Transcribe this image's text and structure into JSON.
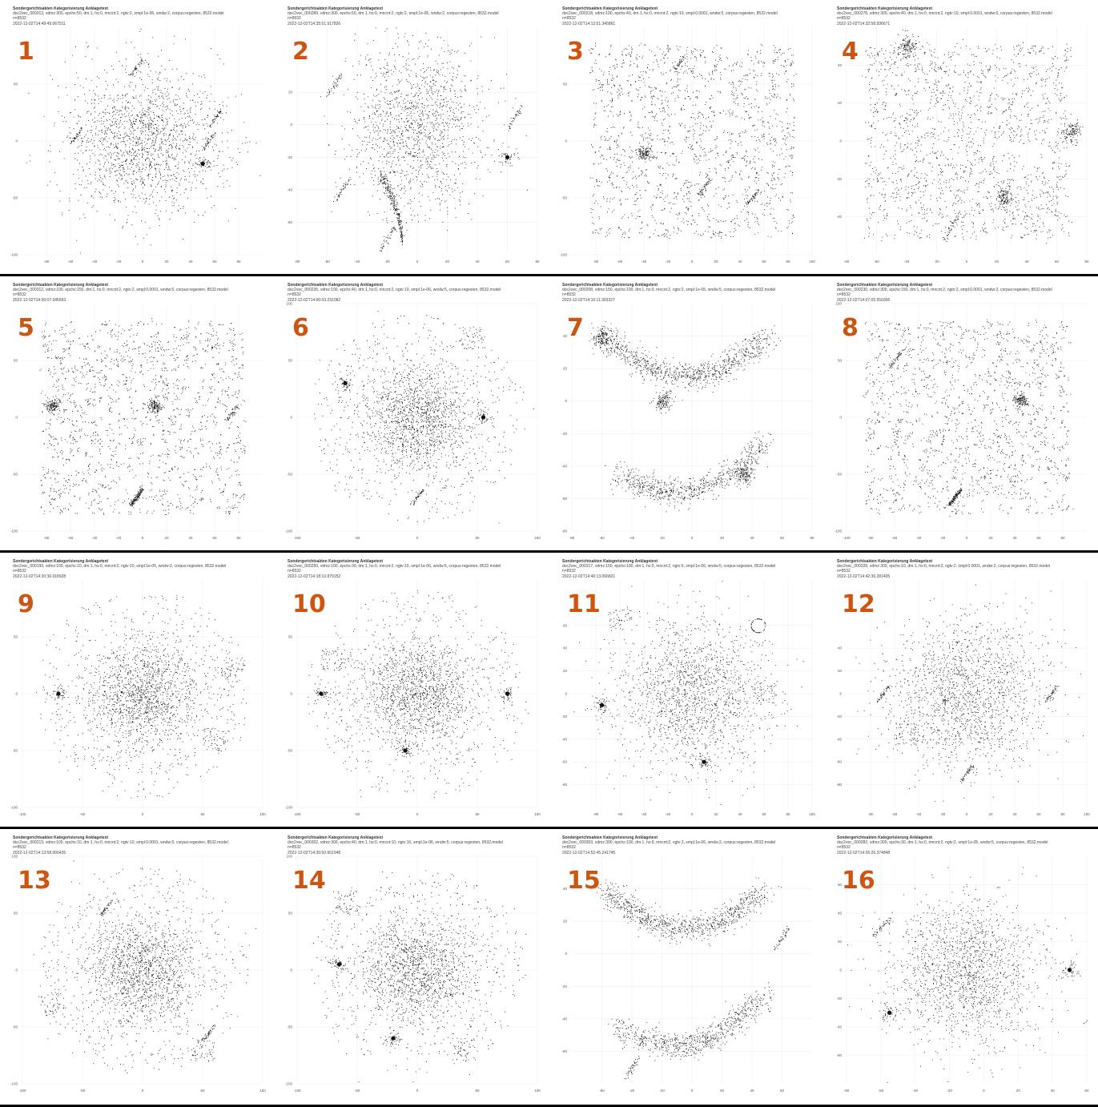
{
  "style": {
    "accent": "#cc5511",
    "point_color": "#111111",
    "grid_color": "#eeeeee"
  },
  "panels": [
    {
      "number": "1",
      "title": "Sondergerichtsakten Kategorisierung Anklagetext",
      "params": "doc2vec_000313, vdmz:300, epchs:50, dm:1, hs:0, mncnt:2, ngtv:2, smpl:1e-06, wndw:2, corpus:regesten, 8532.model",
      "n": "n=8532",
      "timestamp": "2022-12-02T14:49:49.067511"
    },
    {
      "number": "2",
      "title": "Sondergerichtsakten Kategorisierung Anklagetext",
      "params": "doc2vec_000289, vdmz:300, epchs:50, dm:1, hs:0, mncnt:2, ngtv:2, smpl:1e-05, wndw:2, corpus:regesten, 8532.model",
      "n": "n=8532",
      "timestamp": "2022-12-02T14:35:51.517826"
    },
    {
      "number": "3",
      "title": "Sondergerichtsakten Kategorisierung Anklagetext",
      "params": "doc2vec_000218, vdmz:100, epchs:40, dm:1, hs:0, mncnt:2, ngtv:10, smpl:0.0001, wndw:5, corpus:regesten, 8532.model",
      "n": "n=8532",
      "timestamp": "2022-12-02T14:12:51.345861"
    },
    {
      "number": "4",
      "title": "Sondergerichtsakten Kategorisierung Anklagetext",
      "params": "doc2vec_000278, vdmz:300, epchs:40, dm:1, hs:0, mncnt:2, ngtv:10, smpl:0.0001, wndw:5, corpus:regesten, 8532.model",
      "n": "n=8532",
      "timestamp": "2022-12-02T14:32:58.936671"
    },
    {
      "number": "5",
      "title": "Sondergerichtsakten Kategorisierung Anklagetext",
      "params": "doc2vec_000312, vdmz:100, epchs:150, dm:1, hs:0, mncnt:2, ngtv:2, smpl:0.0001, wndw:5, corpus:regesten, 8532.model",
      "n": "n=8532",
      "timestamp": "2022-12-02T14:50:07.045693"
    },
    {
      "number": "6",
      "title": "Sondergerichtsakten Kategorisierung Anklagetext",
      "params": "doc2vec_000235, vdmz:100, epchs:40, dm:1, hs:0, mncnt:2, ngtv:10, smpl:1e-06, wndw:5, corpus:regesten, 8532.model",
      "n": "n=8532",
      "timestamp": "2022-12-02T14:00:03.231082"
    },
    {
      "number": "7",
      "title": "Sondergerichtsakten Kategorisierung Anklagetext",
      "params": "doc2vec_000208, vdmz:150, epchs:100, dm:1, hs:0, mncnt:2, ngtv:2, smpl:1e-05, wndw:5, corpus:regesten, 8532.model",
      "n": "n=8532",
      "timestamp": "2022-12-02T14:10:11.303327"
    },
    {
      "number": "8",
      "title": "Sondergerichtsakten Kategorisierung Anklagetext",
      "params": "doc2vec_000230, vdmz:300, epchs:150, dm:1, hs:0, mncnt:2, ngtv:2, smpl:0.0001, wndw:2, corpus:regesten, 8532.model",
      "n": "n=8532",
      "timestamp": "2022-12-02T14:07:05.550306"
    },
    {
      "number": "9",
      "title": "Sondergerichtsakten Kategorisierung Anklagetext",
      "params": "doc2vec_000199, vdmz:100, epchs:10, dm:1, hs:0, mncnt:2, ngtv:10, smpl:1e-05, wndw:2, corpus:regesten, 8532.model",
      "n": "n=8532",
      "timestamp": "2022-12-02T14:20:36.918928"
    },
    {
      "number": "10",
      "title": "Sondergerichtsakten Kategorisierung Anklagetext",
      "params": "doc2vec_000250, vdmz:100, epchs:30, dm:1, hs:0, mncnt:2, ngtv:10, smpl:1e-06, wndw:5, corpus:regesten, 8532.model",
      "n": "n=8532",
      "timestamp": "2022-12-02T14:18:10.879152"
    },
    {
      "number": "11",
      "title": "Sondergerichtsakten Kategorisierung Anklagetext",
      "params": "doc2vec_000317, vdmz:150, epchs:100, dm:1, hs:0, mncnt:2, ngtv:5, smpl:1e-06, wndw:5, corpus:regesten, 8532.model",
      "n": "n=8532",
      "timestamp": "2022-12-02T14:46:13.066821"
    },
    {
      "number": "12",
      "title": "Sondergerichtsakten Kategorisierung Anklagetext",
      "params": "doc2vec_000328, vdmz:300, epchs:10, dm:1, hs:0, mncnt:2, ngtv:2, smpl:0.0001, wndw:2, corpus:regesten, 8532.model",
      "n": "n=8532",
      "timestamp": "2022-12-02T14:42:36.391405"
    },
    {
      "number": "13",
      "title": "Sondergerichtsakten Kategorisierung Anklagetext",
      "params": "doc2vec_000213, vdmz:100, epchs:10, dm:1, hs:0, mncnt:2, ngtv:10, smpl:0.0001, wndw:5, corpus:regesten, 8532.model",
      "n": "n=8532",
      "timestamp": "2022-12-02T14:13:58.066435"
    },
    {
      "number": "14",
      "title": "Sondergerichtsakten Kategorisierung Anklagetext",
      "params": "doc2vec_000302, vdmz:300, epchs:40, dm:1, hs:0, mncnt:10, ngtv:10, smpl:1e-06, wndw:5, corpus:regesten, 8532.model",
      "n": "n=8532",
      "timestamp": "2022-12-02T14:30:50.601948"
    },
    {
      "number": "15",
      "title": "Sondergerichtsakten Kategorisierung Anklagetext",
      "params": "doc2vec_000303, vdmz:300, epchs:100, dm:1, hs:0, mncnt:2, ngtv:2, smpl:1e-06, wndw:2, corpus:regesten, 8532.model",
      "n": "n=8532",
      "timestamp": "2022-12-02T14:52:45.241745"
    },
    {
      "number": "16",
      "title": "Sondergerichtsakten Kategorisierung Anklagetext",
      "params": "doc2vec_000282, vdmz:300, epchs:30, dm:1, hs:0, mncnt:2, ngtv:2, smpl:1e-05, wndw:5, corpus:regesten, 8532.model",
      "n": "n=8532",
      "timestamp": "2022-12-02T14:26:26.374848"
    }
  ],
  "chart_data": [
    {
      "type": "scatter",
      "panel": "1",
      "n_points": 8532,
      "xlim": [
        -100,
        100
      ],
      "ylim": [
        -100,
        100
      ],
      "x_ticks": [
        -80,
        -60,
        -40,
        -20,
        0,
        20,
        40,
        60,
        80
      ],
      "y_ticks": [
        50,
        0,
        -50,
        -100
      ],
      "grid": true,
      "shape": "dense-disc",
      "clusters": [
        {
          "x": -55,
          "y": 5,
          "kind": "filament"
        },
        {
          "x": 60,
          "y": 20,
          "kind": "filament"
        },
        {
          "x": -5,
          "y": 65,
          "kind": "filament"
        },
        {
          "x": 50,
          "y": -20,
          "kind": "blob"
        },
        {
          "x": 55,
          "y": 0,
          "kind": "filament"
        }
      ]
    },
    {
      "type": "scatter",
      "panel": "2",
      "n_points": 8532,
      "xlim": [
        -80,
        80
      ],
      "ylim": [
        -80,
        60
      ],
      "x_ticks": [
        -80,
        -60,
        -40,
        -20,
        0,
        20,
        40,
        60,
        80
      ],
      "y_ticks": [
        20,
        0,
        -20,
        -40,
        -60
      ],
      "grid": true,
      "shape": "teardrop-with-tail",
      "clusters": [
        {
          "x": -55,
          "y": 25,
          "kind": "filament"
        },
        {
          "x": 65,
          "y": 5,
          "kind": "arc"
        },
        {
          "x": -50,
          "y": -40,
          "kind": "filament"
        },
        {
          "x": 60,
          "y": -20,
          "kind": "blob"
        },
        {
          "x": -20,
          "y": -70,
          "kind": "tail"
        }
      ]
    },
    {
      "type": "scatter",
      "panel": "3",
      "n_points": 8532,
      "xlim": [
        -100,
        100
      ],
      "ylim": [
        -100,
        100
      ],
      "x_ticks": [
        -80,
        -60,
        -40,
        -20,
        0,
        20,
        40,
        60,
        80,
        100
      ],
      "y_ticks": [
        50,
        0,
        -50,
        -100
      ],
      "grid": true,
      "shape": "fragmented-clusters",
      "clusters": [
        {
          "x": -40,
          "y": -10,
          "kind": "dense"
        },
        {
          "x": 10,
          "y": -40,
          "kind": "arc"
        },
        {
          "x": 50,
          "y": -50,
          "kind": "filament"
        },
        {
          "x": -10,
          "y": 70,
          "kind": "filament"
        }
      ]
    },
    {
      "type": "scatter",
      "panel": "4",
      "n_points": 8532,
      "xlim": [
        -80,
        80
      ],
      "ylim": [
        -60,
        60
      ],
      "x_ticks": [
        -80,
        -60,
        -40,
        -20,
        0,
        20,
        40,
        60,
        80
      ],
      "y_ticks": [
        40,
        20,
        0,
        -20,
        -40
      ],
      "grid": true,
      "shape": "fragmented-clusters",
      "clusters": [
        {
          "x": -40,
          "y": 50,
          "kind": "dense"
        },
        {
          "x": 70,
          "y": 5,
          "kind": "dense"
        },
        {
          "x": 25,
          "y": -30,
          "kind": "dense"
        },
        {
          "x": -10,
          "y": -45,
          "kind": "filament"
        }
      ]
    },
    {
      "type": "scatter",
      "panel": "5",
      "n_points": 8532,
      "xlim": [
        -100,
        100
      ],
      "ylim": [
        -100,
        100
      ],
      "x_ticks": [
        -80,
        -60,
        -40,
        -20,
        0,
        20,
        40,
        60,
        80
      ],
      "y_ticks": [
        50,
        0,
        -50,
        -100
      ],
      "grid": true,
      "shape": "triangular-fragmented",
      "clusters": [
        {
          "x": 10,
          "y": 10,
          "kind": "dense"
        },
        {
          "x": -5,
          "y": -70,
          "kind": "dense-tail"
        },
        {
          "x": -75,
          "y": 10,
          "kind": "dense"
        },
        {
          "x": 75,
          "y": 5,
          "kind": "filament"
        }
      ]
    },
    {
      "type": "scatter",
      "panel": "6",
      "n_points": 8532,
      "xlim": [
        -100,
        100
      ],
      "ylim": [
        -100,
        100
      ],
      "x_ticks": [
        -100,
        -50,
        0,
        50,
        100
      ],
      "y_ticks": [
        100,
        50,
        0,
        -50,
        -100
      ],
      "grid": true,
      "shape": "dense-disc-with-halo",
      "clusters": [
        {
          "x": 45,
          "y": 70,
          "kind": "sparse-patch"
        },
        {
          "x": -60,
          "y": 30,
          "kind": "blob"
        },
        {
          "x": 55,
          "y": 0,
          "kind": "blob"
        },
        {
          "x": 0,
          "y": -70,
          "kind": "filament"
        }
      ]
    },
    {
      "type": "scatter",
      "panel": "7",
      "n_points": 8532,
      "xlim": [
        -80,
        80
      ],
      "ylim": [
        -80,
        60
      ],
      "x_ticks": [
        -80,
        -60,
        -40,
        -20,
        0,
        20,
        40,
        60,
        80
      ],
      "y_ticks": [
        40,
        20,
        0,
        -20,
        -40,
        -60,
        -80
      ],
      "grid": true,
      "shape": "s-curve-ribbon",
      "clusters": [
        {
          "x": 35,
          "y": -45,
          "kind": "dense"
        },
        {
          "x": -20,
          "y": 0,
          "kind": "dense"
        },
        {
          "x": -60,
          "y": 40,
          "kind": "dense"
        }
      ]
    },
    {
      "type": "scatter",
      "panel": "8",
      "n_points": 8532,
      "xlim": [
        -100,
        100
      ],
      "ylim": [
        -100,
        100
      ],
      "x_ticks": [
        -100,
        -80,
        -60,
        -40,
        -20,
        0,
        20,
        40,
        60,
        80
      ],
      "y_ticks": [
        100,
        50,
        0,
        -50,
        -100
      ],
      "grid": true,
      "shape": "fragmented-clusters",
      "clusters": [
        {
          "x": 45,
          "y": 15,
          "kind": "dense"
        },
        {
          "x": -10,
          "y": -70,
          "kind": "dense-tail"
        },
        {
          "x": -60,
          "y": 50,
          "kind": "filament"
        }
      ]
    },
    {
      "type": "scatter",
      "panel": "9",
      "n_points": 8532,
      "xlim": [
        -100,
        100
      ],
      "ylim": [
        -100,
        100
      ],
      "x_ticks": [
        -100,
        -50,
        0,
        50,
        100
      ],
      "y_ticks": [
        50,
        0,
        -50,
        -100
      ],
      "grid": true,
      "shape": "dense-disc-with-halo",
      "clusters": [
        {
          "x": 75,
          "y": 20,
          "kind": "sparse-patch"
        },
        {
          "x": 60,
          "y": -40,
          "kind": "sparse-patch"
        },
        {
          "x": -70,
          "y": 0,
          "kind": "blob"
        }
      ]
    },
    {
      "type": "scatter",
      "panel": "10",
      "n_points": 8532,
      "xlim": [
        -100,
        100
      ],
      "ylim": [
        -100,
        100
      ],
      "x_ticks": [
        -100,
        -50,
        0,
        50,
        100
      ],
      "y_ticks": [
        50,
        0,
        -50,
        -100
      ],
      "grid": true,
      "shape": "dense-disc-with-halo",
      "clusters": [
        {
          "x": -70,
          "y": 30,
          "kind": "sparse-patch"
        },
        {
          "x": -80,
          "y": 0,
          "kind": "blob"
        },
        {
          "x": -10,
          "y": -50,
          "kind": "blob"
        },
        {
          "x": 75,
          "y": 0,
          "kind": "blob"
        }
      ]
    },
    {
      "type": "scatter",
      "panel": "11",
      "n_points": 8532,
      "xlim": [
        -100,
        100
      ],
      "ylim": [
        -100,
        100
      ],
      "x_ticks": [
        -80,
        -60,
        -40,
        -20,
        0,
        20,
        40,
        60,
        80,
        100
      ],
      "y_ticks": [
        60,
        40,
        20,
        0,
        -20,
        -40,
        -60,
        -80
      ],
      "grid": true,
      "shape": "dense-disc",
      "clusters": [
        {
          "x": -60,
          "y": 65,
          "kind": "sparse-patch"
        },
        {
          "x": 55,
          "y": 60,
          "kind": "ring"
        },
        {
          "x": 60,
          "y": 0,
          "kind": "sparse-patch"
        },
        {
          "x": -75,
          "y": -10,
          "kind": "blob"
        },
        {
          "x": 10,
          "y": -60,
          "kind": "blob"
        }
      ]
    },
    {
      "type": "scatter",
      "panel": "12",
      "n_points": 8532,
      "xlim": [
        -100,
        100
      ],
      "ylim": [
        -100,
        100
      ],
      "x_ticks": [
        -80,
        -60,
        -40,
        -20,
        0,
        20,
        40,
        60,
        80,
        100
      ],
      "y_ticks": [
        40,
        20,
        0,
        -20,
        -40,
        -60,
        -80
      ],
      "grid": true,
      "shape": "dense-disc",
      "clusters": [
        {
          "x": -70,
          "y": 0,
          "kind": "filament"
        },
        {
          "x": 70,
          "y": 0,
          "kind": "filament"
        },
        {
          "x": -50,
          "y": -35,
          "kind": "sparse-patch"
        },
        {
          "x": 0,
          "y": -70,
          "kind": "tail"
        }
      ]
    },
    {
      "type": "scatter",
      "panel": "13",
      "n_points": 8532,
      "xlim": [
        -100,
        100
      ],
      "ylim": [
        -100,
        100
      ],
      "x_ticks": [
        -100,
        -50,
        0,
        50,
        100
      ],
      "y_ticks": [
        100,
        50,
        0,
        -50,
        -100
      ],
      "grid": true,
      "shape": "dense-disc-with-halo",
      "clusters": [
        {
          "x": -75,
          "y": -30,
          "kind": "sparse-patch"
        },
        {
          "x": 50,
          "y": -70,
          "kind": "sparse-patch"
        },
        {
          "x": -30,
          "y": 55,
          "kind": "filament"
        },
        {
          "x": 55,
          "y": -55,
          "kind": "filament"
        }
      ]
    },
    {
      "type": "scatter",
      "panel": "14",
      "n_points": 8532,
      "xlim": [
        -100,
        100
      ],
      "ylim": [
        -100,
        100
      ],
      "x_ticks": [
        -100,
        -50,
        0,
        50,
        100
      ],
      "y_ticks": [
        100,
        50,
        0,
        -50,
        -100
      ],
      "grid": true,
      "shape": "dense-disc-with-halo",
      "clusters": [
        {
          "x": -60,
          "y": 60,
          "kind": "sparse-patch"
        },
        {
          "x": 40,
          "y": -70,
          "kind": "sparse-patch"
        },
        {
          "x": -65,
          "y": 5,
          "kind": "blob"
        },
        {
          "x": -20,
          "y": -60,
          "kind": "blob"
        }
      ]
    },
    {
      "type": "scatter",
      "panel": "15",
      "n_points": 8532,
      "xlim": [
        -80,
        80
      ],
      "ylim": [
        -80,
        60
      ],
      "x_ticks": [
        -60,
        -40,
        -20,
        0,
        20,
        40,
        60
      ],
      "y_ticks": [
        40,
        20,
        0,
        -20,
        -40,
        -60
      ],
      "grid": true,
      "shape": "s-curve-ribbon",
      "clusters": [
        {
          "x": -40,
          "y": -70,
          "kind": "filament"
        },
        {
          "x": 60,
          "y": 10,
          "kind": "filament"
        }
      ]
    },
    {
      "type": "scatter",
      "panel": "16",
      "n_points": 8532,
      "xlim": [
        -80,
        60
      ],
      "ylim": [
        -80,
        80
      ],
      "x_ticks": [
        -80,
        -60,
        -40,
        -20,
        0,
        20,
        40,
        60
      ],
      "y_ticks": [
        60,
        40,
        20,
        0,
        -20,
        -40,
        -60
      ],
      "grid": true,
      "shape": "dense-disc",
      "clusters": [
        {
          "x": -60,
          "y": 30,
          "kind": "filament"
        },
        {
          "x": 65,
          "y": -30,
          "kind": "filament"
        },
        {
          "x": -55,
          "y": -30,
          "kind": "blob"
        },
        {
          "x": 50,
          "y": 0,
          "kind": "blob"
        }
      ]
    }
  ]
}
